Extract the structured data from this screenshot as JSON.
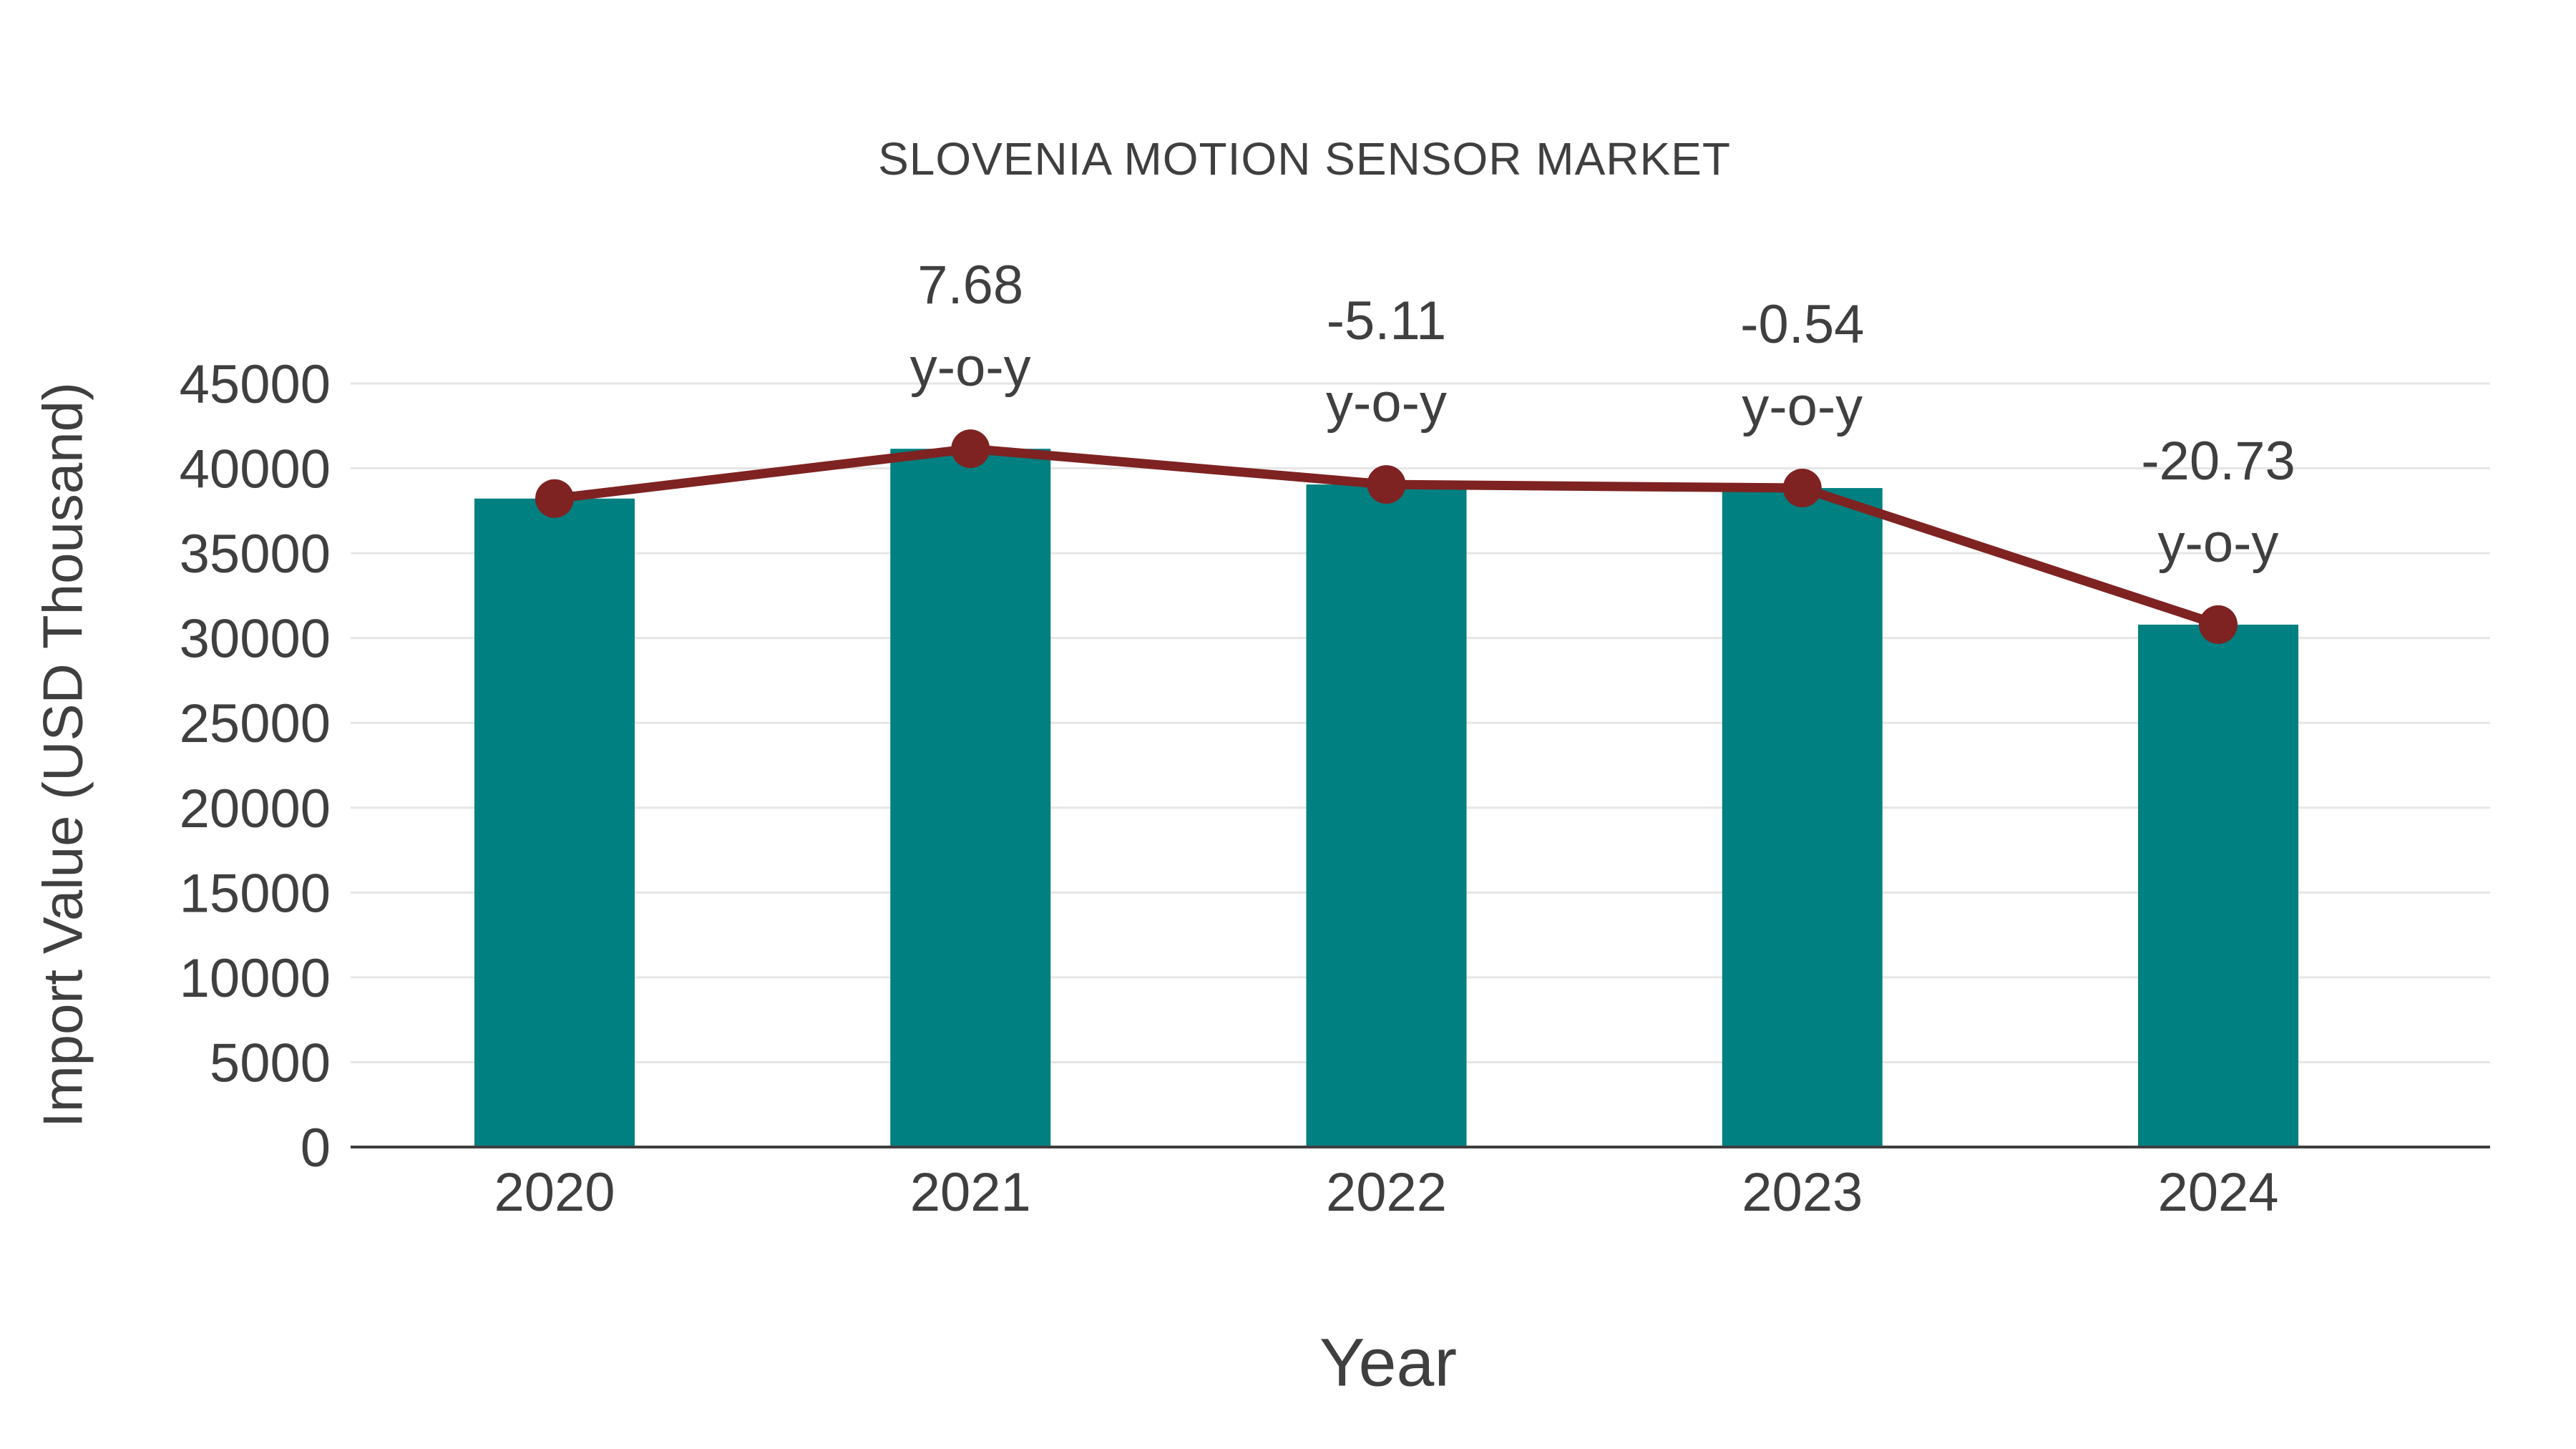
{
  "chart_data": {
    "type": "bar",
    "overlay": "line",
    "title": "SLOVENIA MOTION SENSOR MARKET",
    "xlabel": "Year",
    "ylabel": "Import Value (USD Thousand)",
    "categories": [
      "2020",
      "2021",
      "2022",
      "2023",
      "2024"
    ],
    "series": [
      {
        "type": "bar",
        "values": [
          38220,
          41155,
          39050,
          38840,
          30790
        ]
      },
      {
        "type": "line",
        "values": [
          38220,
          41155,
          39050,
          38840,
          30790
        ]
      }
    ],
    "annotations": [
      {
        "category": "2021",
        "line1": "7.68",
        "line2": "y-o-y"
      },
      {
        "category": "2022",
        "line1": "-5.11",
        "line2": "y-o-y"
      },
      {
        "category": "2023",
        "line1": "-0.54",
        "line2": "y-o-y"
      },
      {
        "category": "2024",
        "line1": "-20.73",
        "line2": "y-o-y"
      }
    ],
    "y_ticks": [
      0,
      5000,
      10000,
      15000,
      20000,
      25000,
      30000,
      35000,
      40000,
      45000
    ],
    "ylim": [
      0,
      47500
    ],
    "grid": "horizontal",
    "legend": "none",
    "colors": {
      "bar": "#008080",
      "line": "#7f2222",
      "marker": "#7f2222",
      "text": "#3f3f3f",
      "grid": "#e6e6e6",
      "axis": "#3f3f3f"
    }
  }
}
